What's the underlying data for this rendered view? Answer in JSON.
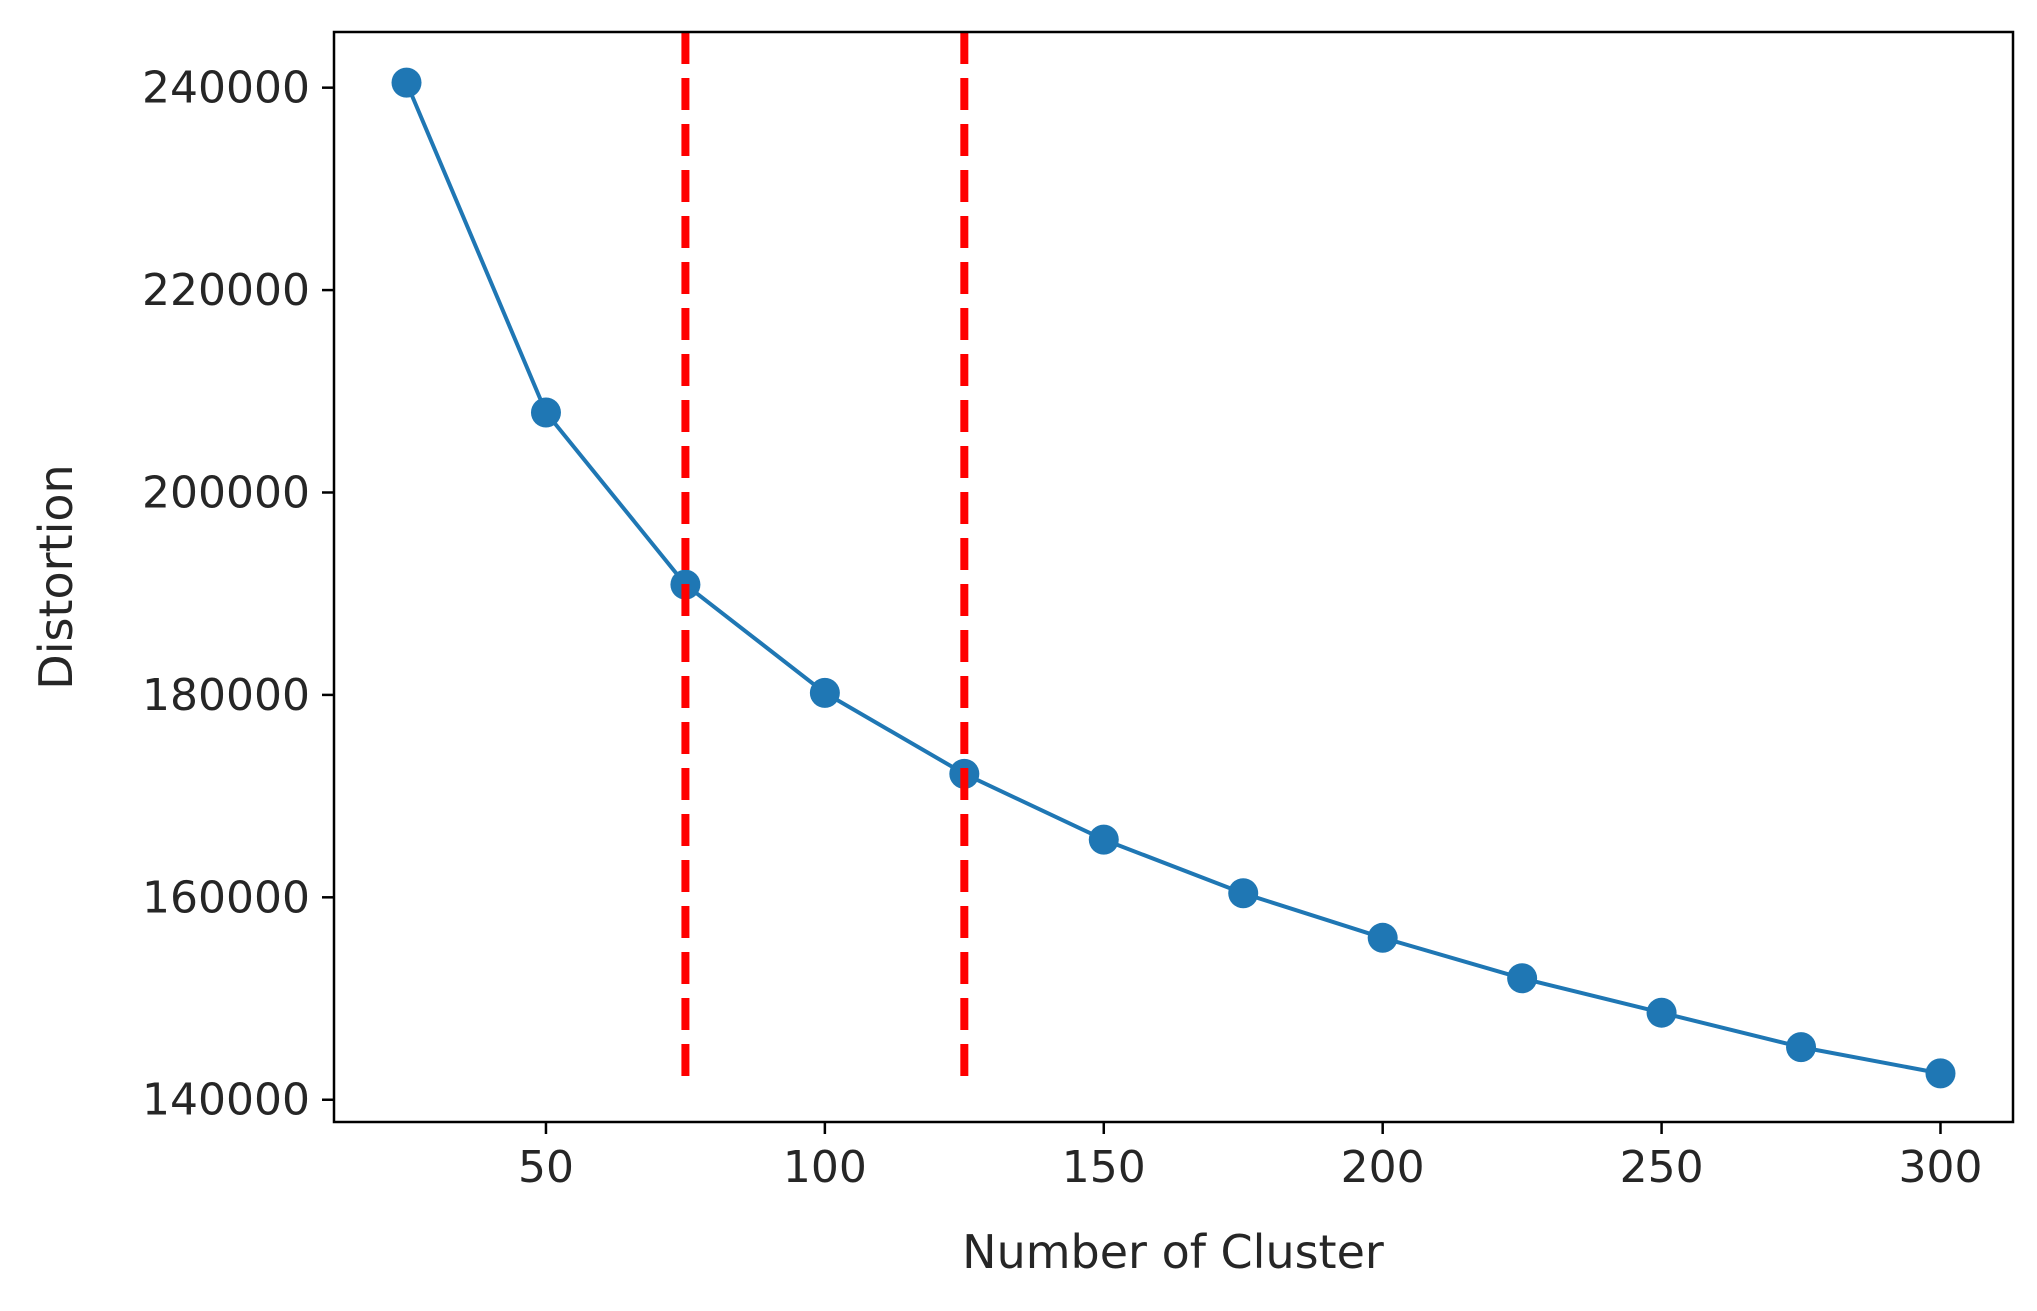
{
  "chart_data": {
    "type": "line",
    "title": "",
    "xlabel": "Number of Cluster",
    "ylabel": "Distortion",
    "xlim": [
      12,
      313
    ],
    "ylim": [
      137800,
      245500
    ],
    "xticks": [
      50,
      100,
      150,
      200,
      250,
      300
    ],
    "yticks": [
      140000,
      160000,
      180000,
      200000,
      220000,
      240000
    ],
    "grid": false,
    "legend": "none",
    "series": [
      {
        "color": "#1f77b4",
        "marker": "circle",
        "x": [
          25,
          50,
          75,
          100,
          125,
          150,
          175,
          200,
          225,
          250,
          275,
          300
        ],
        "y": [
          240500,
          207900,
          190900,
          180200,
          172200,
          165700,
          160400,
          156000,
          152000,
          148600,
          145200,
          142600
        ]
      }
    ],
    "vlines": [
      {
        "x": 75,
        "color": "#ff0000",
        "style": "dashed",
        "ymin": 141500,
        "ymax": 245500
      },
      {
        "x": 125,
        "color": "#ff0000",
        "style": "dashed",
        "ymin": 141500,
        "ymax": 245500
      }
    ]
  }
}
